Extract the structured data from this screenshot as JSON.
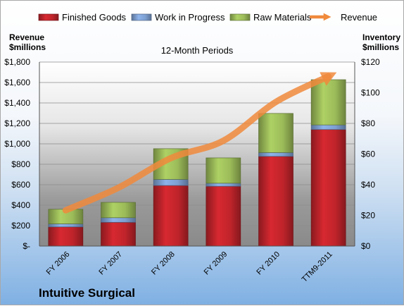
{
  "company": "Intuitive Surgical",
  "chart_data": {
    "type": "bar",
    "stacked": true,
    "title": "12-Month Periods",
    "categories": [
      "FY 2006",
      "FY 2007",
      "FY 2008",
      "FY 2009",
      "FY 2010",
      "TTM9-2011"
    ],
    "series": [
      {
        "name": "Finished Goods",
        "axis": "right",
        "color": "#c0242b",
        "values": [
          12.5,
          15.5,
          39.5,
          39,
          58.5,
          76
        ]
      },
      {
        "name": "Work in Progress",
        "axis": "right",
        "color": "#7ea0d2",
        "values": [
          2,
          3,
          4,
          2,
          2.5,
          3
        ]
      },
      {
        "name": "Raw Materials",
        "axis": "right",
        "color": "#9bbb59",
        "values": [
          9.5,
          10,
          20,
          16.5,
          25.5,
          29.5
        ]
      },
      {
        "name": "Revenue",
        "type": "line",
        "axis": "left",
        "color": "#f08a3c",
        "values": [
          350,
          570,
          860,
          1030,
          1410,
          1660
        ]
      }
    ],
    "ylabel_left": [
      "Revenue",
      "$millions"
    ],
    "ylabel_right": [
      "Inventory",
      "$millions"
    ],
    "ylim_left": [
      0,
      1800
    ],
    "ylim_right": [
      0,
      120
    ],
    "yticks_left": [
      "$-",
      "$200",
      "$400",
      "$600",
      "$800",
      "$1,000",
      "$1,200",
      "$1,400",
      "$1,600",
      "$1,800"
    ],
    "yticks_right": [
      "$0",
      "$20",
      "$40",
      "$60",
      "$80",
      "$100",
      "$120"
    ],
    "legend_position": "top",
    "grid": true
  }
}
